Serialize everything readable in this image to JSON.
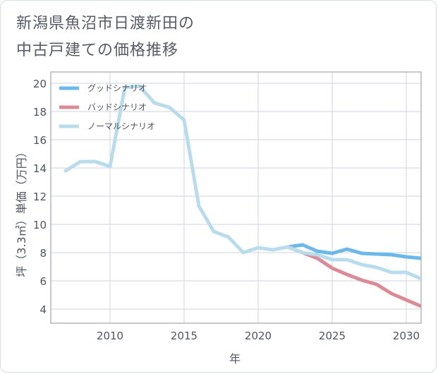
{
  "title": {
    "line1": "新潟県魚沼市日渡新田の",
    "line2": "中古戸建ての価格推移"
  },
  "chart_data": {
    "type": "line",
    "xlabel": "年",
    "ylabel": "坪（3.3㎡）単価（万円）",
    "xlim": [
      2006,
      2031
    ],
    "ylim": [
      3,
      20.8
    ],
    "x_ticks": [
      2010,
      2015,
      2020,
      2025,
      2030
    ],
    "y_ticks": [
      4,
      6,
      8,
      10,
      12,
      14,
      16,
      18,
      20
    ],
    "grid": true,
    "legend_position": "top-left",
    "series": [
      {
        "name": "グッドシナリオ",
        "color": "#6bb8ea",
        "x": [
          2022,
          2023,
          2024,
          2025,
          2026,
          2027,
          2028,
          2029,
          2030,
          2031
        ],
        "y": [
          8.4,
          8.55,
          8.1,
          7.95,
          8.25,
          7.95,
          7.9,
          7.85,
          7.7,
          7.6
        ]
      },
      {
        "name": "バッドシナリオ",
        "color": "#dc8a96",
        "x": [
          2022,
          2023,
          2024,
          2025,
          2026,
          2027,
          2028,
          2029,
          2030,
          2031
        ],
        "y": [
          8.4,
          8.0,
          7.6,
          6.9,
          6.45,
          6.05,
          5.75,
          5.1,
          4.65,
          4.2
        ]
      },
      {
        "name": "ノーマルシナリオ",
        "color": "#b9dcec",
        "x": [
          2007,
          2008,
          2009,
          2010,
          2011,
          2012,
          2013,
          2014,
          2015,
          2016,
          2017,
          2018,
          2019,
          2020,
          2021,
          2022,
          2023,
          2024,
          2025,
          2026,
          2027,
          2028,
          2029,
          2030,
          2031
        ],
        "y": [
          13.8,
          14.45,
          14.45,
          14.1,
          19.7,
          19.8,
          18.6,
          18.3,
          17.4,
          11.3,
          9.5,
          9.1,
          8.0,
          8.35,
          8.2,
          8.4,
          8.0,
          7.85,
          7.5,
          7.5,
          7.15,
          6.95,
          6.6,
          6.6,
          6.15
        ]
      }
    ]
  }
}
